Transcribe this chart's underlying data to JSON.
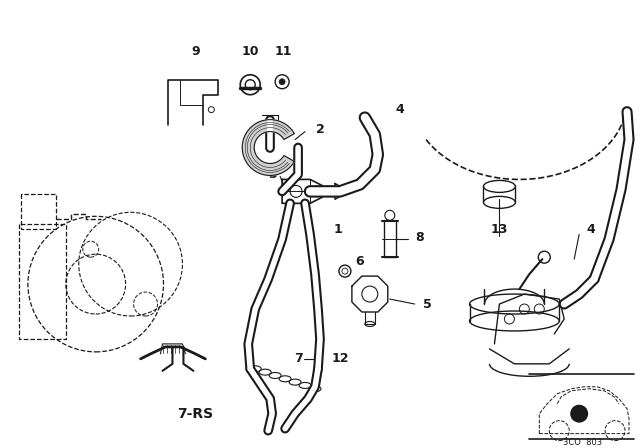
{
  "background_color": "#ffffff",
  "line_color": "#1a1a1a",
  "figsize": [
    6.4,
    4.48
  ],
  "dpi": 100,
  "code_text": "3CO  803",
  "label_fontsize": 9,
  "bold_label_fontsize": 10
}
